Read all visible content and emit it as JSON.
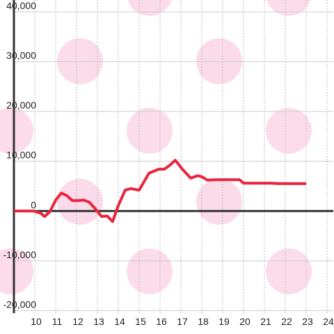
{
  "chart_data": {
    "type": "line",
    "x": [
      9.0,
      9.93,
      10.27,
      10.47,
      10.73,
      11.0,
      11.27,
      11.53,
      11.8,
      12.1,
      12.33,
      12.6,
      12.87,
      13.2,
      13.47,
      13.73,
      14.0,
      14.33,
      14.6,
      15.0,
      15.47,
      15.93,
      16.2,
      16.47,
      16.73,
      17.07,
      17.47,
      17.8,
      18.0,
      18.27,
      18.67,
      19.8,
      20.0,
      21.33,
      21.67,
      23.0
    ],
    "series": [
      {
        "color": "#e8253e",
        "values": [
          0,
          0,
          -400,
          -1100,
          -100,
          2200,
          3600,
          3100,
          2100,
          2100,
          2200,
          1800,
          600,
          -1100,
          -1000,
          -2100,
          1100,
          4200,
          4500,
          4200,
          7600,
          8400,
          8400,
          9200,
          10200,
          8400,
          6600,
          7100,
          6900,
          6200,
          6300,
          6300,
          5600,
          5600,
          5500,
          5500
        ]
      }
    ],
    "xlim": [
      9,
      24.3
    ],
    "xticks": [
      10,
      11,
      12,
      13,
      14,
      15,
      16,
      17,
      18,
      19,
      20,
      21,
      22,
      23,
      24
    ],
    "ylim": [
      -20500,
      40000
    ],
    "yticks": [
      {
        "value": -20000,
        "label": "-20,000"
      },
      {
        "value": -10000,
        "label": "-10,000"
      },
      0,
      {
        "value": 10000,
        "label": "10,000"
      },
      {
        "value": 20000,
        "label": "20,000"
      },
      {
        "value": 30000,
        "label": "30,000"
      },
      {
        "value": 40000,
        "label": "40,000"
      }
    ],
    "grid": true
  }
}
